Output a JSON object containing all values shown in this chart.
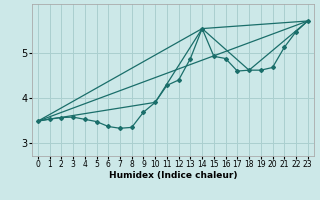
{
  "background_color": "#cce8e8",
  "grid_color": "#aacfcf",
  "line_color": "#1a6e6a",
  "xlabel": "Humidex (Indice chaleur)",
  "xlim": [
    -0.5,
    23.5
  ],
  "ylim": [
    2.7,
    6.1
  ],
  "yticks": [
    3,
    4,
    5
  ],
  "xticks": [
    0,
    1,
    2,
    3,
    4,
    5,
    6,
    7,
    8,
    9,
    10,
    11,
    12,
    13,
    14,
    15,
    16,
    17,
    18,
    19,
    20,
    21,
    22,
    23
  ],
  "line1_x": [
    0,
    1,
    2,
    3,
    4,
    5,
    6,
    7,
    8,
    9,
    10,
    11,
    12,
    13,
    14,
    15,
    16,
    17,
    18,
    19,
    20,
    21,
    22,
    23
  ],
  "line1_y": [
    3.48,
    3.53,
    3.56,
    3.57,
    3.52,
    3.47,
    3.36,
    3.32,
    3.34,
    3.68,
    3.9,
    4.28,
    4.4,
    4.88,
    5.55,
    4.93,
    4.88,
    4.6,
    4.62,
    4.62,
    4.68,
    5.13,
    5.48,
    5.72
  ],
  "line2_x": [
    0,
    14,
    18,
    23
  ],
  "line2_y": [
    3.48,
    5.55,
    4.62,
    5.72
  ],
  "line3_x": [
    0,
    23
  ],
  "line3_y": [
    3.48,
    5.72
  ],
  "line4_x": [
    0,
    10,
    14,
    23
  ],
  "line4_y": [
    3.48,
    3.9,
    5.55,
    5.72
  ]
}
